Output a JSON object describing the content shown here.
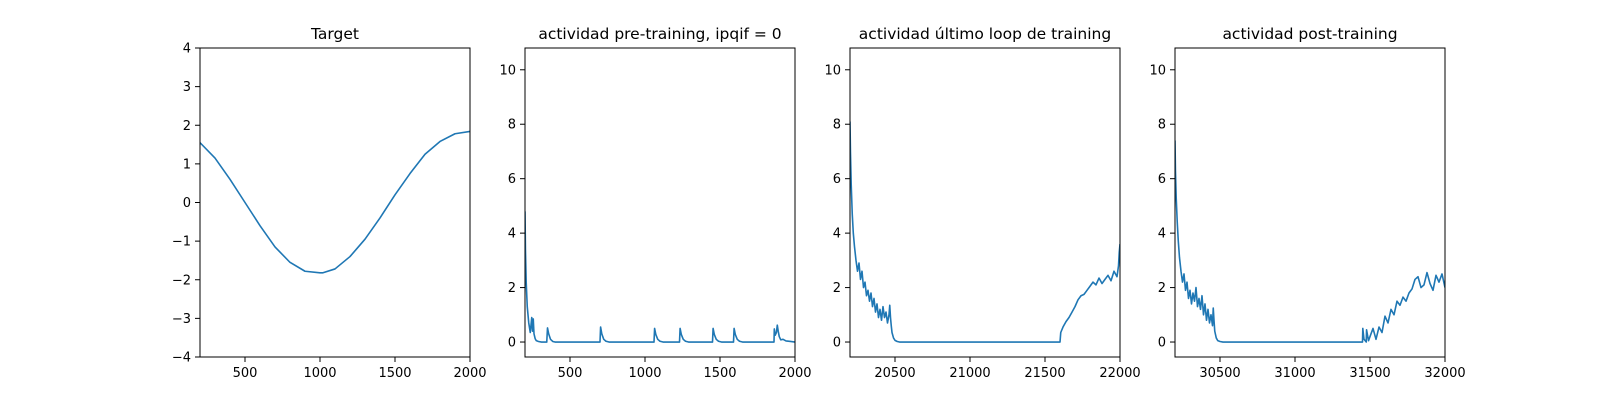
{
  "figure": {
    "background": "#ffffff",
    "line_color": "#1f77b4"
  },
  "chart_data": [
    {
      "type": "line",
      "title": "Target",
      "xlabel": "",
      "ylabel": "",
      "xlim": [
        200,
        2000
      ],
      "ylim": [
        -4,
        4
      ],
      "xticks": [
        500,
        1000,
        1500,
        2000
      ],
      "yticks": [
        -4,
        -3,
        -2,
        -1,
        0,
        1,
        2,
        3,
        4
      ],
      "ytick_labels": [
        "−4",
        "−3",
        "−2",
        "−1",
        "0",
        "1",
        "2",
        "3",
        "4"
      ],
      "series": [
        {
          "name": "target",
          "x": [
            200,
            300,
            400,
            500,
            600,
            700,
            800,
            900,
            1000,
            1020,
            1100,
            1200,
            1300,
            1400,
            1500,
            1600,
            1700,
            1800,
            1900,
            2000
          ],
          "y": [
            1.55,
            1.15,
            0.6,
            0.0,
            -0.6,
            -1.15,
            -1.55,
            -1.78,
            -1.82,
            -1.82,
            -1.72,
            -1.4,
            -0.95,
            -0.4,
            0.2,
            0.75,
            1.25,
            1.58,
            1.78,
            1.84
          ]
        }
      ]
    },
    {
      "type": "line",
      "title": "actividad pre-training, ipqif = 0",
      "xlabel": "",
      "ylabel": "",
      "xlim": [
        200,
        2000
      ],
      "ylim": [
        -0.55,
        10.8
      ],
      "xticks": [
        500,
        1000,
        1500,
        2000
      ],
      "yticks": [
        0,
        2,
        4,
        6,
        8,
        10
      ],
      "ytick_labels": [
        "0",
        "2",
        "4",
        "6",
        "8",
        "10"
      ],
      "series": [
        {
          "name": "actividad",
          "x": [
            200,
            203,
            208,
            215,
            225,
            235,
            245,
            250,
            255,
            260,
            268,
            275,
            290,
            310,
            345,
            350,
            358,
            370,
            385,
            400,
            700,
            704,
            712,
            725,
            740,
            760,
            1060,
            1064,
            1072,
            1085,
            1100,
            1120,
            1230,
            1234,
            1242,
            1255,
            1270,
            1290,
            1450,
            1454,
            1462,
            1475,
            1490,
            1510,
            1590,
            1594,
            1602,
            1615,
            1630,
            1650,
            1860,
            1862,
            1868,
            1876,
            1882,
            1888,
            1895,
            1905,
            1920,
            1940,
            1970,
            2000
          ],
          "y": [
            4.8,
            3.4,
            2.2,
            1.3,
            0.7,
            0.35,
            0.9,
            0.4,
            0.85,
            0.3,
            0.12,
            0.05,
            0.02,
            0.0,
            0.0,
            0.52,
            0.3,
            0.1,
            0.02,
            0.0,
            0.0,
            0.55,
            0.3,
            0.1,
            0.03,
            0.0,
            0.0,
            0.5,
            0.28,
            0.1,
            0.03,
            0.0,
            0.0,
            0.5,
            0.28,
            0.1,
            0.03,
            0.0,
            0.0,
            0.5,
            0.28,
            0.1,
            0.03,
            0.0,
            0.0,
            0.5,
            0.28,
            0.1,
            0.03,
            0.0,
            0.0,
            0.48,
            0.25,
            0.35,
            0.62,
            0.4,
            0.2,
            0.08,
            0.1,
            0.04,
            0.02,
            0.0
          ]
        }
      ]
    },
    {
      "type": "line",
      "title": "actividad último loop de training",
      "xlabel": "",
      "ylabel": "",
      "xlim": [
        20200,
        22000
      ],
      "ylim": [
        -0.55,
        10.8
      ],
      "xticks": [
        20500,
        21000,
        21500,
        22000
      ],
      "yticks": [
        0,
        2,
        4,
        6,
        8,
        10
      ],
      "ytick_labels": [
        "0",
        "2",
        "4",
        "6",
        "8",
        "10"
      ],
      "series": [
        {
          "name": "actividad",
          "x": [
            20200,
            20203,
            20208,
            20215,
            20222,
            20230,
            20240,
            20250,
            20260,
            20270,
            20280,
            20290,
            20300,
            20310,
            20320,
            20330,
            20340,
            20350,
            20360,
            20370,
            20380,
            20390,
            20400,
            20410,
            20420,
            20430,
            20440,
            20450,
            20460,
            20465,
            20470,
            20475,
            20480,
            20490,
            20500,
            20515,
            20530,
            20550,
            21600,
            21605,
            21620,
            21640,
            21660,
            21680,
            21700,
            21720,
            21740,
            21760,
            21780,
            21800,
            21820,
            21840,
            21860,
            21880,
            21900,
            21920,
            21940,
            21960,
            21980,
            21990,
            21995,
            22000
          ],
          "y": [
            8.1,
            7.0,
            5.8,
            4.7,
            4.0,
            3.5,
            3.0,
            2.6,
            2.9,
            2.3,
            2.6,
            2.0,
            2.2,
            1.7,
            1.9,
            1.5,
            1.8,
            1.3,
            1.6,
            1.1,
            1.4,
            0.9,
            1.2,
            0.8,
            1.3,
            0.9,
            1.1,
            0.7,
            1.0,
            1.35,
            0.9,
            0.6,
            0.35,
            0.15,
            0.06,
            0.02,
            0.0,
            0.0,
            0.0,
            0.35,
            0.55,
            0.75,
            0.9,
            1.1,
            1.3,
            1.55,
            1.7,
            1.75,
            1.9,
            2.05,
            2.2,
            2.1,
            2.35,
            2.15,
            2.3,
            2.45,
            2.25,
            2.6,
            2.4,
            2.8,
            3.3,
            3.6
          ]
        }
      ]
    },
    {
      "type": "line",
      "title": "actividad post-training",
      "xlabel": "",
      "ylabel": "",
      "xlim": [
        30200,
        32000
      ],
      "ylim": [
        -0.55,
        10.8
      ],
      "xticks": [
        30500,
        31000,
        31500,
        32000
      ],
      "yticks": [
        0,
        2,
        4,
        6,
        8,
        10
      ],
      "ytick_labels": [
        "0",
        "2",
        "4",
        "6",
        "8",
        "10"
      ],
      "series": [
        {
          "name": "actividad",
          "x": [
            30200,
            30203,
            30208,
            30215,
            30222,
            30230,
            30240,
            30250,
            30260,
            30270,
            30280,
            30290,
            30300,
            30310,
            30320,
            30330,
            30340,
            30350,
            30360,
            30370,
            30380,
            30390,
            30400,
            30410,
            30420,
            30430,
            30440,
            30450,
            30455,
            30460,
            30465,
            30475,
            30485,
            30500,
            30520,
            30550,
            31450,
            31452,
            31460,
            31475,
            31477,
            31490,
            31500,
            31520,
            31540,
            31560,
            31580,
            31600,
            31620,
            31640,
            31660,
            31680,
            31700,
            31720,
            31740,
            31760,
            31780,
            31800,
            31820,
            31840,
            31860,
            31880,
            31900,
            31920,
            31940,
            31960,
            31980,
            32000
          ],
          "y": [
            7.4,
            6.3,
            5.3,
            4.4,
            3.7,
            3.1,
            2.6,
            2.2,
            2.5,
            1.9,
            2.2,
            1.6,
            1.9,
            1.4,
            1.8,
            1.5,
            2.0,
            1.3,
            1.6,
            1.2,
            1.7,
            1.0,
            1.4,
            0.8,
            1.2,
            0.7,
            1.0,
            0.6,
            1.25,
            0.8,
            0.4,
            0.15,
            0.05,
            0.02,
            0.0,
            0.0,
            0.0,
            0.5,
            0.1,
            0.0,
            0.45,
            0.05,
            0.2,
            0.5,
            0.1,
            0.55,
            0.35,
            0.95,
            0.7,
            1.2,
            1.0,
            1.5,
            1.35,
            1.65,
            1.5,
            1.8,
            1.95,
            2.3,
            2.4,
            2.0,
            2.1,
            2.55,
            2.15,
            1.9,
            2.45,
            2.2,
            2.5,
            2.0
          ]
        }
      ]
    }
  ]
}
